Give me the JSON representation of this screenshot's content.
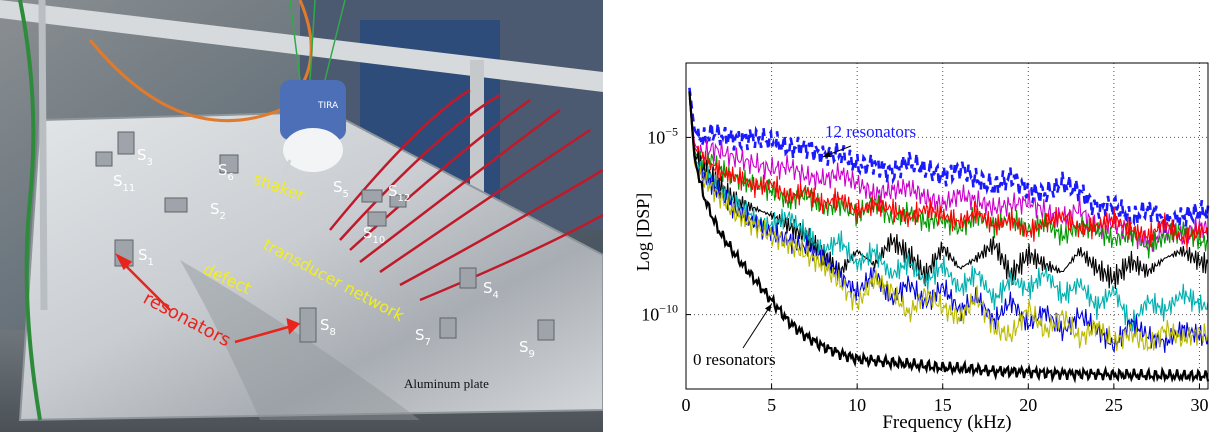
{
  "photo": {
    "sensor_labels": [
      {
        "main": "S",
        "sub": "1"
      },
      {
        "main": "S",
        "sub": "2"
      },
      {
        "main": "S",
        "sub": "3"
      },
      {
        "main": "S",
        "sub": "4"
      },
      {
        "main": "S",
        "sub": "5"
      },
      {
        "main": "S",
        "sub": "6"
      },
      {
        "main": "S",
        "sub": "7"
      },
      {
        "main": "S",
        "sub": "8"
      },
      {
        "main": "S",
        "sub": "9"
      },
      {
        "main": "S",
        "sub": "10"
      },
      {
        "main": "S",
        "sub": "11"
      },
      {
        "main": "S",
        "sub": "12"
      }
    ],
    "labels": {
      "shaker": "shaker",
      "transducer_network": "transducer network",
      "defect": "defect",
      "resonators": "resonators",
      "plate": "Aluminum plate",
      "shaker_brand": "TIRA"
    },
    "colors": {
      "yellow_label": "#f2ee1e",
      "red_label": "#e8241c",
      "white_label": "#ffffff"
    }
  },
  "chart_data": {
    "type": "line",
    "title": "",
    "xlabel": "Frequency  (kHz)",
    "ylabel": "Log [DSP]",
    "xlim": [
      0,
      30.5
    ],
    "ylim_log10": [
      -12.1,
      -2.9
    ],
    "y_scale": "log",
    "grid": true,
    "x_ticks": [
      0,
      5,
      10,
      15,
      20,
      25,
      30
    ],
    "y_ticks": [
      {
        "value": -5,
        "base": "10",
        "exp": "−5"
      },
      {
        "value": -10,
        "base": "10",
        "exp": "−10"
      }
    ],
    "annotations": [
      {
        "text": "12 resonators",
        "color": "#1a1aff",
        "target": [
          8,
          -5.55
        ]
      },
      {
        "text": "0 resonators",
        "color": "#000000",
        "target": [
          5,
          -9.7
        ]
      }
    ],
    "x": [
      0.2,
      0.5,
      1,
      1.5,
      2,
      3,
      4,
      5,
      6,
      7,
      8,
      9,
      10,
      11,
      12,
      13,
      14,
      15,
      16,
      17,
      18,
      19,
      20,
      21,
      22,
      23,
      24,
      25,
      26,
      27,
      28,
      29,
      30,
      30.5
    ],
    "series": [
      {
        "color": "#1a1aff",
        "dashed": true,
        "values": [
          -3.6,
          -4.8,
          -5.1,
          -4.85,
          -4.95,
          -5.05,
          -5.0,
          -5.1,
          -5.3,
          -5.25,
          -5.5,
          -5.45,
          -5.8,
          -5.75,
          -6.0,
          -5.7,
          -5.9,
          -6.1,
          -5.85,
          -6.2,
          -6.4,
          -6.1,
          -6.5,
          -6.6,
          -6.3,
          -6.5,
          -7.0,
          -6.9,
          -7.3,
          -7.0,
          -7.4,
          -7.25,
          -7.1,
          -7.15
        ]
      },
      {
        "color": "#cc00cc",
        "dashed": false,
        "values": [
          -3.7,
          -5.2,
          -5.5,
          -5.3,
          -5.4,
          -5.6,
          -5.75,
          -5.9,
          -5.8,
          -6.1,
          -6.2,
          -6.0,
          -6.3,
          -6.6,
          -6.5,
          -6.4,
          -6.7,
          -6.9,
          -6.6,
          -6.8,
          -7.0,
          -6.9,
          -6.8,
          -7.1,
          -7.3,
          -7.0,
          -7.6,
          -7.4,
          -7.7,
          -8.0,
          -7.6,
          -7.8,
          -7.5,
          -7.6
        ]
      },
      {
        "color": "#009900",
        "dashed": false,
        "values": [
          -3.8,
          -5.4,
          -5.8,
          -5.6,
          -5.9,
          -6.2,
          -6.3,
          -6.5,
          -6.8,
          -6.6,
          -7.0,
          -6.9,
          -7.2,
          -6.8,
          -7.3,
          -7.1,
          -7.4,
          -7.3,
          -7.6,
          -7.2,
          -7.5,
          -7.3,
          -7.6,
          -7.4,
          -7.8,
          -7.5,
          -7.6,
          -7.9,
          -7.7,
          -8.1,
          -7.8,
          -7.6,
          -7.9,
          -8.0
        ]
      },
      {
        "color": "#ff0000",
        "dashed": false,
        "values": [
          -3.8,
          -5.3,
          -5.6,
          -5.8,
          -6.0,
          -6.1,
          -6.4,
          -6.3,
          -6.7,
          -6.5,
          -6.9,
          -6.7,
          -7.1,
          -6.9,
          -7.0,
          -7.3,
          -7.0,
          -7.2,
          -7.4,
          -7.1,
          -7.5,
          -7.3,
          -7.7,
          -7.4,
          -7.2,
          -7.6,
          -7.5,
          -7.3,
          -7.6,
          -7.8,
          -7.4,
          -7.9,
          -7.6,
          -7.7
        ]
      },
      {
        "color": "#000000",
        "dashed": false,
        "values": [
          -3.9,
          -5.5,
          -5.9,
          -6.1,
          -6.4,
          -6.8,
          -7.0,
          -7.2,
          -7.5,
          -7.8,
          -8.3,
          -8.8,
          -8.2,
          -8.6,
          -7.9,
          -8.3,
          -8.9,
          -8.1,
          -8.7,
          -8.4,
          -8.0,
          -8.9,
          -8.3,
          -8.6,
          -8.8,
          -8.2,
          -8.7,
          -9.0,
          -8.5,
          -8.8,
          -8.4,
          -8.2,
          -8.5,
          -8.6
        ]
      },
      {
        "color": "#00b0b0",
        "dashed": false,
        "values": [
          -3.9,
          -5.6,
          -6.0,
          -6.2,
          -6.5,
          -6.9,
          -7.3,
          -7.5,
          -7.2,
          -7.7,
          -8.2,
          -7.9,
          -8.6,
          -8.2,
          -8.9,
          -8.5,
          -9.1,
          -8.6,
          -9.3,
          -8.8,
          -9.6,
          -9.0,
          -9.3,
          -8.8,
          -9.5,
          -9.1,
          -9.8,
          -9.3,
          -10.3,
          -9.6,
          -9.9,
          -9.4,
          -9.7,
          -9.8
        ]
      },
      {
        "color": "#0000dd",
        "dashed": false,
        "values": [
          -3.9,
          -5.7,
          -6.1,
          -6.3,
          -6.6,
          -7.1,
          -7.4,
          -7.7,
          -7.9,
          -8.1,
          -8.4,
          -8.9,
          -9.4,
          -8.8,
          -9.6,
          -9.1,
          -9.7,
          -9.2,
          -9.9,
          -9.5,
          -10.2,
          -9.6,
          -10.3,
          -9.9,
          -10.5,
          -10.0,
          -10.4,
          -10.9,
          -10.2,
          -10.6,
          -10.8,
          -10.4,
          -10.6,
          -10.7
        ]
      },
      {
        "color": "#bbbb00",
        "dashed": false,
        "values": [
          -3.9,
          -5.8,
          -6.2,
          -6.4,
          -6.7,
          -7.2,
          -7.5,
          -7.8,
          -8.0,
          -8.3,
          -8.6,
          -9.1,
          -9.7,
          -9.0,
          -9.3,
          -10.0,
          -9.4,
          -9.8,
          -10.1,
          -9.5,
          -10.4,
          -10.6,
          -9.8,
          -10.5,
          -10.0,
          -10.7,
          -10.3,
          -10.8,
          -10.5,
          -10.9,
          -10.4,
          -10.7,
          -10.5,
          -10.6
        ]
      },
      {
        "color": "#000000",
        "dashed": false,
        "noisy": true,
        "values": [
          -3.7,
          -5.6,
          -6.6,
          -7.2,
          -7.7,
          -8.4,
          -9.0,
          -9.6,
          -10.2,
          -10.6,
          -10.9,
          -11.1,
          -11.25,
          -11.3,
          -11.35,
          -11.4,
          -11.45,
          -11.5,
          -11.52,
          -11.55,
          -11.6,
          -11.6,
          -11.62,
          -11.65,
          -11.66,
          -11.67,
          -11.68,
          -11.7,
          -11.7,
          -11.72,
          -11.72,
          -11.73,
          -11.73,
          -11.74
        ]
      }
    ]
  }
}
